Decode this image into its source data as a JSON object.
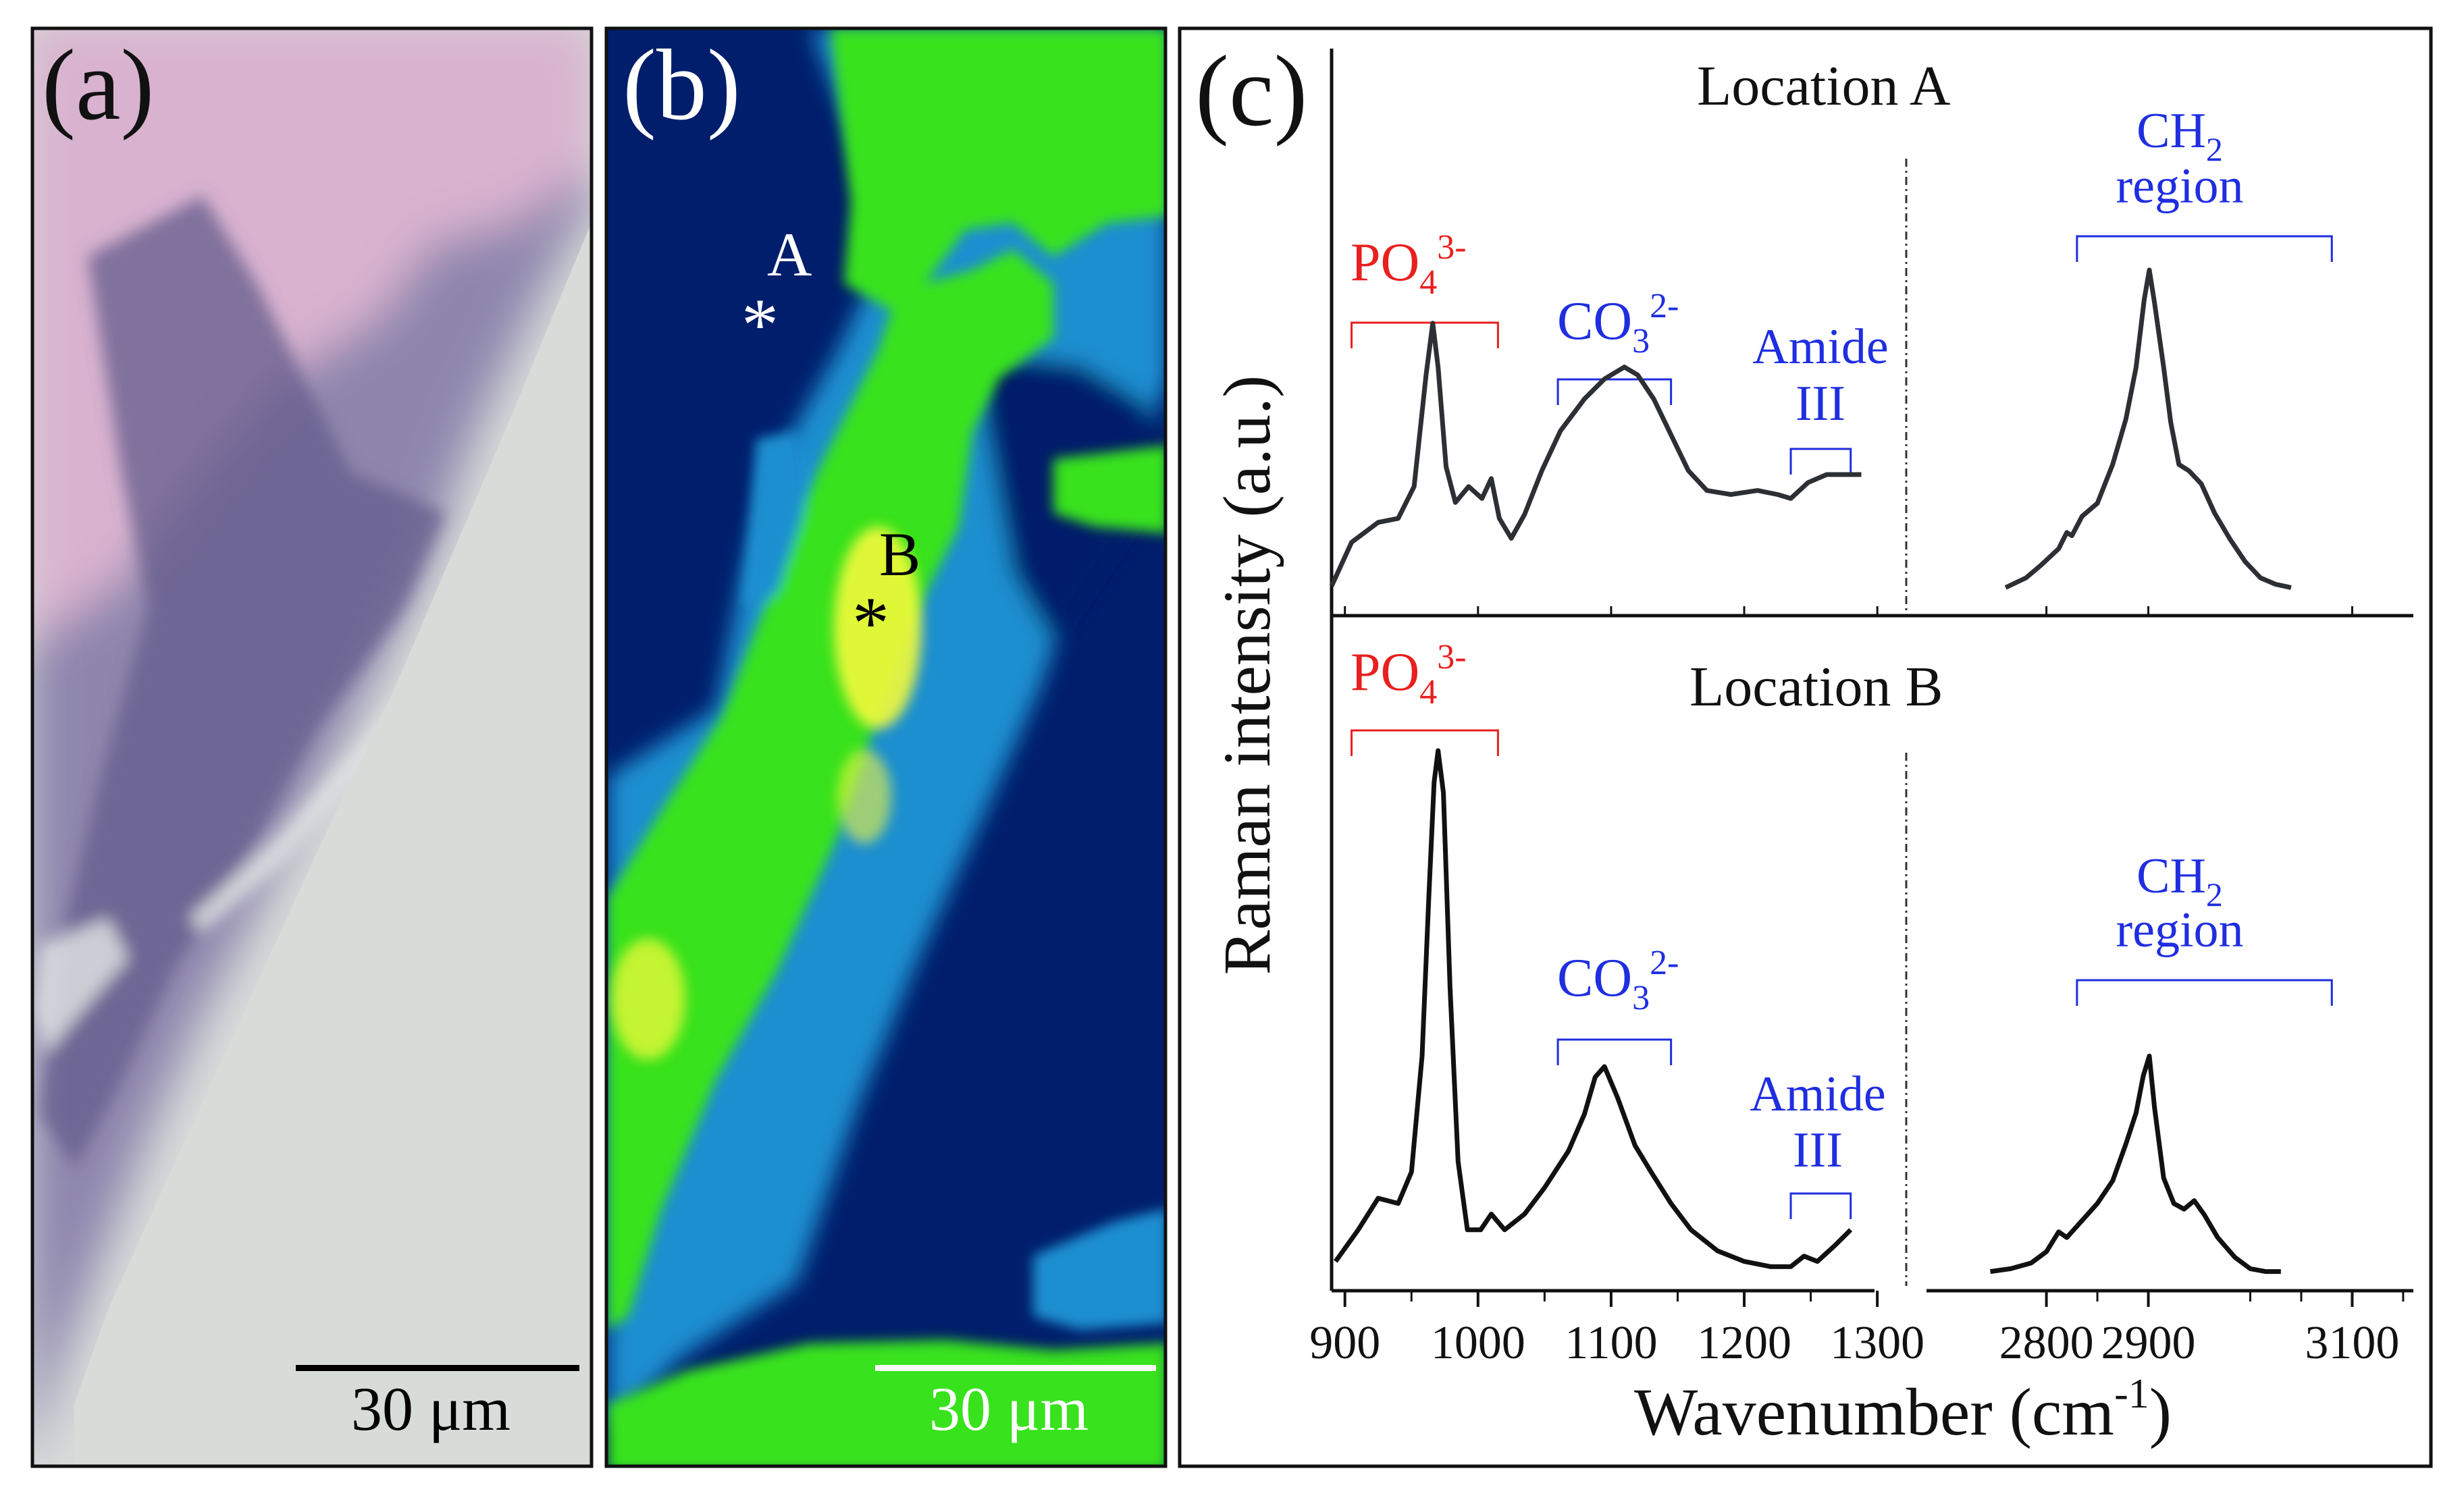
{
  "panels": {
    "a": {
      "label": "(a)",
      "scale_bar": "30 μm",
      "colors": {
        "tissue_pink": "#d8b2cf",
        "tissue_purple": "#8e86ad",
        "tissue_dark": "#645c8c",
        "background": "#d7dcd9"
      }
    },
    "b": {
      "label": "(b)",
      "scale_bar": "30 μm",
      "point_a": {
        "text": "A",
        "marker": "*"
      },
      "point_b": {
        "text": "B",
        "marker": "*"
      },
      "colors": {
        "low": "#001e6b",
        "mid": "#1a8fd0",
        "high": "#39e21c",
        "peak": "#f3f93a"
      }
    },
    "c": {
      "label": "(c)",
      "ylabel": "Raman intensity (a.u.)",
      "xlabel_main": "Wavenumber (cm",
      "xlabel_sup": "-1",
      "xlabel_end": ")",
      "location_a": "Location A",
      "location_b": "Location B",
      "po4": {
        "text": "PO",
        "sub": "4",
        "sup": "3-"
      },
      "co3": {
        "text": "CO",
        "sub": "3",
        "sup": "2-"
      },
      "amide_1": "Amide",
      "amide_2": "III",
      "ch2": {
        "text": "CH",
        "sub": "2",
        "line2": "region"
      },
      "colors": {
        "po4": "#e8201e",
        "bands": "#1f2ee0",
        "spectrum_a": "#2c2f34",
        "spectrum_b": "#111111"
      }
    }
  },
  "chart_data": [
    {
      "type": "line",
      "title": "Location A",
      "xlabel": "Wavenumber (cm-1)",
      "ylabel": "Raman intensity (a.u.)",
      "x_ticks": [
        900,
        1000,
        1100,
        1200,
        1300,
        2800,
        2900,
        3100
      ],
      "x_segments": [
        [
          890,
          1305
        ],
        [
          2740,
          3160
        ]
      ],
      "bands": [
        {
          "label": "PO43-",
          "range": [
            905,
            1015
          ]
        },
        {
          "label": "CO32-",
          "range": [
            1060,
            1145
          ]
        },
        {
          "label": "Amide III",
          "range": [
            1235,
            1280
          ]
        },
        {
          "label": "CH2 region",
          "range": [
            2830,
            3080
          ]
        }
      ],
      "series": [
        {
          "values": [
            [
              890,
              0.02
            ],
            [
              905,
              0.13
            ],
            [
              925,
              0.18
            ],
            [
              940,
              0.19
            ],
            [
              952,
              0.27
            ],
            [
              961,
              0.55
            ],
            [
              966,
              0.68
            ],
            [
              970,
              0.57
            ],
            [
              976,
              0.32
            ],
            [
              983,
              0.23
            ],
            [
              993,
              0.27
            ],
            [
              1003,
              0.24
            ],
            [
              1010,
              0.29
            ],
            [
              1016,
              0.19
            ],
            [
              1025,
              0.14
            ],
            [
              1035,
              0.2
            ],
            [
              1048,
              0.31
            ],
            [
              1062,
              0.41
            ],
            [
              1080,
              0.49
            ],
            [
              1095,
              0.54
            ],
            [
              1110,
              0.57
            ],
            [
              1120,
              0.55
            ],
            [
              1132,
              0.49
            ],
            [
              1145,
              0.4
            ],
            [
              1158,
              0.31
            ],
            [
              1172,
              0.26
            ],
            [
              1190,
              0.25
            ],
            [
              1210,
              0.26
            ],
            [
              1225,
              0.25
            ],
            [
              1235,
              0.24
            ],
            [
              1248,
              0.28
            ],
            [
              1262,
              0.3
            ],
            [
              1280,
              0.3
            ],
            [
              1288,
              0.3
            ]
          ]
        },
        {
          "values": [
            [
              2760,
              0.02
            ],
            [
              2780,
              0.05
            ],
            [
              2795,
              0.09
            ],
            [
              2812,
              0.14
            ],
            [
              2820,
              0.19
            ],
            [
              2825,
              0.18
            ],
            [
              2835,
              0.24
            ],
            [
              2850,
              0.28
            ],
            [
              2865,
              0.4
            ],
            [
              2878,
              0.54
            ],
            [
              2888,
              0.7
            ],
            [
              2896,
              0.91
            ],
            [
              2901,
              1.0
            ],
            [
              2906,
              0.9
            ],
            [
              2915,
              0.7
            ],
            [
              2922,
              0.53
            ],
            [
              2930,
              0.4
            ],
            [
              2940,
              0.38
            ],
            [
              2952,
              0.34
            ],
            [
              2965,
              0.25
            ],
            [
              2980,
              0.17
            ],
            [
              2995,
              0.1
            ],
            [
              3010,
              0.05
            ],
            [
              3025,
              0.03
            ],
            [
              3040,
              0.02
            ]
          ]
        }
      ]
    },
    {
      "type": "line",
      "title": "Location B",
      "xlabel": "Wavenumber (cm-1)",
      "ylabel": "Raman intensity (a.u.)",
      "x_ticks": [
        900,
        1000,
        1100,
        1200,
        1300,
        2800,
        2900,
        3100
      ],
      "x_segments": [
        [
          890,
          1305
        ],
        [
          2740,
          3160
        ]
      ],
      "bands": [
        {
          "label": "PO43-",
          "range": [
            905,
            1015
          ]
        },
        {
          "label": "CO32-",
          "range": [
            1060,
            1145
          ]
        },
        {
          "label": "Amide III",
          "range": [
            1235,
            1280
          ]
        },
        {
          "label": "CH2 region",
          "range": [
            2830,
            3080
          ]
        }
      ],
      "series": [
        {
          "values": [
            [
              893,
              0.03
            ],
            [
              910,
              0.09
            ],
            [
              925,
              0.15
            ],
            [
              940,
              0.14
            ],
            [
              950,
              0.2
            ],
            [
              958,
              0.42
            ],
            [
              963,
              0.72
            ],
            [
              967,
              0.94
            ],
            [
              970,
              1.0
            ],
            [
              974,
              0.92
            ],
            [
              979,
              0.55
            ],
            [
              985,
              0.22
            ],
            [
              992,
              0.09
            ],
            [
              1002,
              0.09
            ],
            [
              1010,
              0.12
            ],
            [
              1020,
              0.09
            ],
            [
              1035,
              0.12
            ],
            [
              1050,
              0.17
            ],
            [
              1068,
              0.24
            ],
            [
              1080,
              0.31
            ],
            [
              1088,
              0.38
            ],
            [
              1095,
              0.4
            ],
            [
              1105,
              0.34
            ],
            [
              1118,
              0.25
            ],
            [
              1130,
              0.2
            ],
            [
              1145,
              0.14
            ],
            [
              1160,
              0.09
            ],
            [
              1180,
              0.05
            ],
            [
              1200,
              0.03
            ],
            [
              1220,
              0.02
            ],
            [
              1235,
              0.02
            ],
            [
              1245,
              0.04
            ],
            [
              1255,
              0.03
            ],
            [
              1268,
              0.06
            ],
            [
              1280,
              0.09
            ]
          ]
        },
        {
          "values": [
            [
              2745,
              0.02
            ],
            [
              2765,
              0.03
            ],
            [
              2785,
              0.05
            ],
            [
              2800,
              0.09
            ],
            [
              2812,
              0.16
            ],
            [
              2820,
              0.14
            ],
            [
              2835,
              0.2
            ],
            [
              2850,
              0.26
            ],
            [
              2865,
              0.34
            ],
            [
              2878,
              0.47
            ],
            [
              2888,
              0.58
            ],
            [
              2895,
              0.71
            ],
            [
              2901,
              0.78
            ],
            [
              2906,
              0.6
            ],
            [
              2915,
              0.35
            ],
            [
              2925,
              0.26
            ],
            [
              2935,
              0.24
            ],
            [
              2945,
              0.27
            ],
            [
              2955,
              0.22
            ],
            [
              2968,
              0.14
            ],
            [
              2985,
              0.07
            ],
            [
              3000,
              0.03
            ],
            [
              3015,
              0.02
            ],
            [
              3030,
              0.02
            ]
          ]
        }
      ]
    }
  ]
}
